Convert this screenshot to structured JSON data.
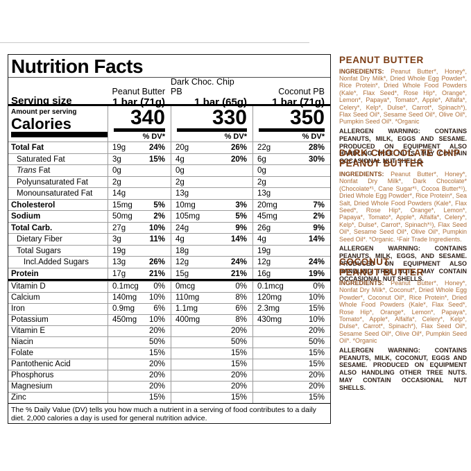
{
  "label": {
    "title": "Nutrition Facts",
    "serving_size_label": "Serving size",
    "amount_per_serving": "Amount per serving",
    "calories_label": "Calories",
    "dv_header": "% DV*",
    "columns": [
      {
        "name": "Peanut Butter",
        "serving": "1 bar (71g)",
        "calories": "340"
      },
      {
        "name": "Dark Choc. Chip PB",
        "serving": "1 bar (65g)",
        "calories": "330"
      },
      {
        "name": "Coconut PB",
        "serving": "1 bar (71g)",
        "calories": "350"
      }
    ],
    "rows": [
      {
        "label": "Total Fat",
        "bold": true,
        "indent": 0,
        "cells": [
          {
            "a": "19g",
            "p": "24%"
          },
          {
            "a": "20g",
            "p": "26%"
          },
          {
            "a": "22g",
            "p": "28%"
          }
        ]
      },
      {
        "label": "Saturated Fat",
        "indent": 1,
        "cells": [
          {
            "a": "3g",
            "p": "15%"
          },
          {
            "a": "4g",
            "p": "20%"
          },
          {
            "a": "6g",
            "p": "30%"
          }
        ]
      },
      {
        "italic": "Trans",
        "label": " Fat",
        "indent": 1,
        "cells": [
          {
            "a": "0g"
          },
          {
            "a": "0g"
          },
          {
            "a": "0g"
          }
        ]
      },
      {
        "label": "Polyunsaturated Fat",
        "indent": 1,
        "cells": [
          {
            "a": "2g"
          },
          {
            "a": "2g"
          },
          {
            "a": "2g"
          }
        ]
      },
      {
        "label": "Monounsaturated Fat",
        "indent": 1,
        "cells": [
          {
            "a": "14g"
          },
          {
            "a": "13g"
          },
          {
            "a": "13g"
          }
        ]
      },
      {
        "label": "Cholesterol",
        "bold": true,
        "indent": 0,
        "cells": [
          {
            "a": "15mg",
            "p": "5%"
          },
          {
            "a": "10mg",
            "p": "3%"
          },
          {
            "a": "20mg",
            "p": "7%"
          }
        ]
      },
      {
        "label": "Sodium",
        "bold": true,
        "indent": 0,
        "cells": [
          {
            "a": "50mg",
            "p": "2%"
          },
          {
            "a": "105mg",
            "p": "5%"
          },
          {
            "a": "45mg",
            "p": "2%"
          }
        ]
      },
      {
        "label": "Total Carb.",
        "bold": true,
        "indent": 0,
        "cells": [
          {
            "a": "27g",
            "p": "10%"
          },
          {
            "a": "24g",
            "p": "9%"
          },
          {
            "a": "26g",
            "p": "9%"
          }
        ]
      },
      {
        "label": "Dietary Fiber",
        "indent": 1,
        "cells": [
          {
            "a": "3g",
            "p": "11%"
          },
          {
            "a": "4g",
            "p": "14%"
          },
          {
            "a": "4g",
            "p": "14%"
          }
        ]
      },
      {
        "label": "Total Sugars",
        "indent": 1,
        "cells": [
          {
            "a": "19g"
          },
          {
            "a": "18g"
          },
          {
            "a": "19g"
          }
        ]
      },
      {
        "label": "Incl.Added Sugars",
        "indent": 2,
        "cells": [
          {
            "a": "13g",
            "p": "26%"
          },
          {
            "a": "12g",
            "p": "24%"
          },
          {
            "a": "12g",
            "p": "24%"
          }
        ]
      },
      {
        "label": "Protein",
        "bold": true,
        "indent": 0,
        "cells": [
          {
            "a": "17g",
            "p": "21%"
          },
          {
            "a": "15g",
            "p": "21%"
          },
          {
            "a": "16g",
            "p": "19%"
          }
        ]
      }
    ],
    "vitamin_rows": [
      {
        "label": "Vitamin D",
        "cells": [
          {
            "a": "0.1mcg",
            "p": "0%"
          },
          {
            "a": "0mcg",
            "p": "0%"
          },
          {
            "a": "0.1mcg",
            "p": "0%"
          }
        ]
      },
      {
        "label": "Calcium",
        "cells": [
          {
            "a": "140mg",
            "p": "10%"
          },
          {
            "a": "110mg",
            "p": "8%"
          },
          {
            "a": "120mg",
            "p": "10%"
          }
        ]
      },
      {
        "label": "Iron",
        "cells": [
          {
            "a": "0.9mg",
            "p": "6%"
          },
          {
            "a": "1.1mg",
            "p": "6%"
          },
          {
            "a": "2.3mg",
            "p": "15%"
          }
        ]
      },
      {
        "label": "Potassium",
        "cells": [
          {
            "a": "450mg",
            "p": "10%"
          },
          {
            "a": "400mg",
            "p": "8%"
          },
          {
            "a": "430mg",
            "p": "10%"
          }
        ]
      },
      {
        "label": "Vitamin E",
        "cells": [
          {
            "p": "20%"
          },
          {
            "p": "20%"
          },
          {
            "p": "20%"
          }
        ]
      },
      {
        "label": "Niacin",
        "cells": [
          {
            "p": "50%"
          },
          {
            "p": "50%"
          },
          {
            "p": "50%"
          }
        ]
      },
      {
        "label": "Folate",
        "cells": [
          {
            "p": "15%"
          },
          {
            "p": "15%"
          },
          {
            "p": "15%"
          }
        ]
      },
      {
        "label": "Pantothenic Acid",
        "cells": [
          {
            "p": "20%"
          },
          {
            "p": "15%"
          },
          {
            "p": "15%"
          }
        ]
      },
      {
        "label": "Phosphorus",
        "cells": [
          {
            "p": "20%"
          },
          {
            "p": "20%"
          },
          {
            "p": "20%"
          }
        ]
      },
      {
        "label": "Magnesium",
        "cells": [
          {
            "p": "20%"
          },
          {
            "p": "20%"
          },
          {
            "p": "20%"
          }
        ]
      },
      {
        "label": "Zinc",
        "cells": [
          {
            "p": "15%"
          },
          {
            "p": "15%"
          },
          {
            "p": "15%"
          }
        ]
      }
    ],
    "footnote": "The % Daily Value (DV) tells you how much a nutrient in a serving of food contributes to a daily diet. 2,000 calories a day is used for general nutrition advice."
  },
  "panels": [
    {
      "heading_lines": [
        "PEANUT BUTTER"
      ],
      "ingredients_label": "INGREDIENTS:",
      "ingredients_text": " Peanut Butter*, Honey*, Nonfat Dry Milk*, Dried Whole Egg Powder*, Rice Protein*, Dried Whole Food Powders (Kale*, Flax Seed*, Rose Hip*, Orange*, Lemon*, Papaya*, Tomato*, Apple*, Alfalfa*, Celery*, Kelp*, Dulse*, Carrot*, Spinach*), Flax Seed Oil*, Sesame Seed Oil*, Olive Oil*, Pumpkin Seed Oil*. *Organic",
      "allergen_text": "ALLERGEN WARNING: CONTAINS PEANUTS, MILK, EGGS AND SESAME. PRODUCED ON EQUIPMENT ALSO HANDLING TREE NUTS. MAY CONTAIN OCCASIONAL NUT SHELLS."
    },
    {
      "heading_lines": [
        "DARK CHOCOLATE CHIP",
        "PEANUT BUTTER"
      ],
      "ingredients_label": "INGREDIENTS:",
      "ingredients_text": " Peanut Butter*, Honey*, Nonfat Dry Milk*, Dark Chocolate* (Chocolate*¹, Cane Sugar*¹, Cocoa Butter*¹), Dried Whole Egg Powder*, Rice Protein*, Sea Salt, Dried Whole Food Powders (Kale*, Flax Seed*, Rose Hip*, Orange*, Lemon*, Papaya*, Tomato*, Apple*, Alfalfa*, Celery*, Kelp*, Dulse*, Carrot*, Spinach*¹), Flax Seed Oil*, Sesame Seed Oil*, Olive Oil*, Pumpkin Seed Oil*. *Organic. ¹Fair Trade Ingredients.",
      "allergen_text": "ALLERGEN WARNING: CONTAINS PEANUTS, MILK, EGGS, AND SESAME. PRODUCED ON EQUIPMENT ALSO HANDLING TREE NUTS. MAY CONTAIN OCCASIONAL NUT SHELLS."
    },
    {
      "heading_lines": [
        "COCONUT",
        "PEANUT BUTTER"
      ],
      "ingredients_label": "INGREDIENTS:",
      "ingredients_text": " Peanut Butter*, Honey*, Nonfat Dry Milk*, Coconut*, Dried Whole Egg Powder*, Coconut Oil*, Rice Protein*, Dried Whole Food Powders (Kale*, Flax Seed*, Rose Hip*, Orange*, Lemon*, Papaya*, Tomato*, Apple*, Alfalfa*, Celery*, Kelp*, Dulse*, Carrot*, Spinach*), Flax Seed Oil*, Sesame Seed Oil*, Olive Oil*, Pumpkin Seed Oil*. *Organic",
      "allergen_text": "ALLERGEN WARNING: CONTAINS PEANUTS, MILK, COCONUT, EGGS AND SESAME. PRODUCED ON EQUIPMENT ALSO HANDLING OTHER TREE NUTS. MAY CONTAIN OCCASIONAL NUT SHELLS."
    }
  ],
  "colors": {
    "heading_brown": "#7b3c14",
    "ingredients_brown": "#b0703a",
    "ingredients_label_brown": "#8a4c1f",
    "allergen_dark": "#32221a",
    "bar_black": "#000000",
    "hairline_gray": "#9e9e9e"
  }
}
